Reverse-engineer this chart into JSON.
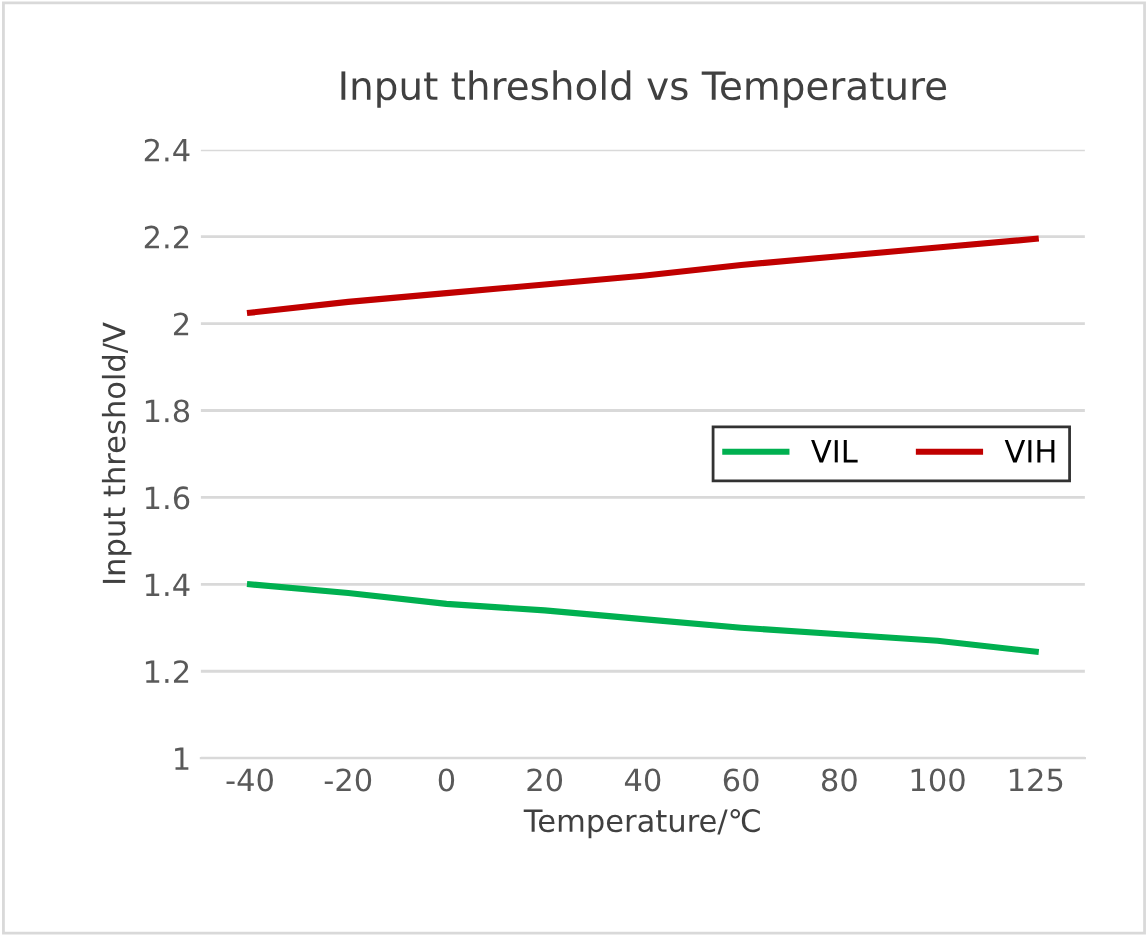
{
  "chart_data": {
    "type": "line",
    "title": "Input threshold vs Temperature",
    "xlabel": "Temperature/℃",
    "ylabel": "Input threshold/V",
    "categories": [
      "-40",
      "-20",
      "0",
      "20",
      "40",
      "60",
      "80",
      "100",
      "125"
    ],
    "series": [
      {
        "name": "VIL",
        "color": "#00b050",
        "values": [
          1.4,
          1.38,
          1.355,
          1.34,
          1.32,
          1.3,
          1.285,
          1.27,
          1.245
        ]
      },
      {
        "name": "VIH",
        "color": "#c00000",
        "values": [
          2.025,
          2.05,
          2.07,
          2.09,
          2.11,
          2.135,
          2.155,
          2.175,
          2.195
        ]
      }
    ],
    "ylim": [
      1,
      2.4
    ],
    "yticks": [
      1,
      1.2,
      1.4,
      1.6,
      1.8,
      2,
      2.2,
      2.4
    ],
    "grid": "y",
    "legend": "right",
    "marker": "none",
    "line_style": "solid"
  }
}
